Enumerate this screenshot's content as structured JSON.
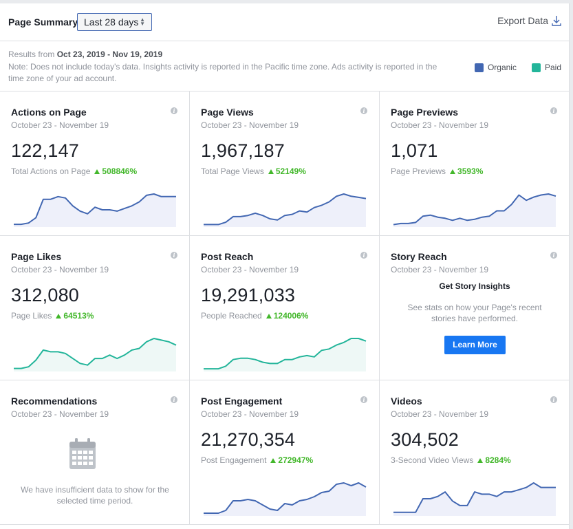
{
  "header": {
    "title": "Page Summary",
    "range": "Last 28 days",
    "export": "Export Data"
  },
  "info": {
    "results_prefix": "Results from",
    "results_range": "Oct 23, 2019 - Nov 19, 2019",
    "note": "Note: Does not include today's data. Insights activity is reported in the Pacific time zone. Ads activity is reported in the time zone of your ad account.",
    "legend": [
      {
        "label": "Organic",
        "color": "#4267b2"
      },
      {
        "label": "Paid",
        "color": "#23b59a"
      }
    ]
  },
  "cards": [
    {
      "title": "Actions on Page",
      "date": "October 23 - November 19",
      "value": "122,147",
      "sub": "Total Actions on Page",
      "pct": "508846%",
      "color": "#4267b2",
      "series": [
        1,
        1,
        2,
        6,
        20,
        20,
        22,
        21,
        15,
        11,
        9,
        14,
        12,
        12,
        11,
        13,
        15,
        18,
        23,
        24,
        22,
        22,
        22
      ]
    },
    {
      "title": "Page Views",
      "date": "October 23 - November 19",
      "value": "1,967,187",
      "sub": "Total Page Views",
      "pct": "52149%",
      "color": "#4267b2",
      "series": [
        1,
        1,
        1,
        3,
        8,
        8,
        9,
        11,
        9,
        6,
        5,
        9,
        10,
        13,
        12,
        16,
        18,
        21,
        26,
        28,
        26,
        25,
        24
      ]
    },
    {
      "title": "Page Previews",
      "date": "October 23 - November 19",
      "value": "1,071",
      "sub": "Page Previews",
      "pct": "3593%",
      "color": "#4267b2",
      "series": [
        1,
        2,
        2,
        3,
        9,
        10,
        8,
        7,
        5,
        7,
        5,
        6,
        8,
        9,
        14,
        14,
        20,
        29,
        24,
        27,
        29,
        30,
        28
      ]
    },
    {
      "title": "Page Likes",
      "date": "October 23 - November 19",
      "value": "312,080",
      "sub": "Page Likes",
      "pct": "64513%",
      "color": "#23b59a",
      "series": [
        1,
        1,
        2,
        6,
        12,
        11,
        11,
        10,
        7,
        4,
        3,
        7,
        7,
        9,
        7,
        9,
        12,
        13,
        17,
        19,
        18,
        17,
        15
      ]
    },
    {
      "title": "Post Reach",
      "date": "October 23 - November 19",
      "value": "19,291,033",
      "sub": "People Reached",
      "pct": "124006%",
      "color": "#23b59a",
      "series": [
        1,
        1,
        1,
        3,
        8,
        9,
        9,
        8,
        6,
        5,
        5,
        8,
        8,
        10,
        11,
        10,
        15,
        16,
        19,
        21,
        24,
        24,
        22
      ]
    },
    {
      "title": "Post Engagement",
      "date": "October 23 - November 19",
      "value": "21,270,354",
      "sub": "Post Engagement",
      "pct": "272947%",
      "color": "#4267b2",
      "series": [
        1,
        1,
        1,
        3,
        10,
        10,
        11,
        10,
        7,
        4,
        3,
        8,
        7,
        10,
        11,
        13,
        16,
        17,
        22,
        23,
        21,
        23,
        20
      ]
    },
    {
      "title": "Videos",
      "date": "October 23 - November 19",
      "value": "304,502",
      "sub": "3-Second Video Views",
      "pct": "8284%",
      "color": "#4267b2",
      "series": [
        1,
        1,
        1,
        1,
        7,
        7,
        8,
        10,
        6,
        4,
        4,
        10,
        9,
        9,
        8,
        10,
        10,
        11,
        12,
        14,
        12,
        12,
        12
      ]
    }
  ],
  "story": {
    "title": "Story Reach",
    "date": "October 23 - November 19",
    "heading": "Get Story Insights",
    "text": "See stats on how your Page's recent stories have performed.",
    "button": "Learn More"
  },
  "recommendations": {
    "title": "Recommendations",
    "date": "October 23 - November 19",
    "text": "We have insufficient data to show for the selected time period."
  }
}
